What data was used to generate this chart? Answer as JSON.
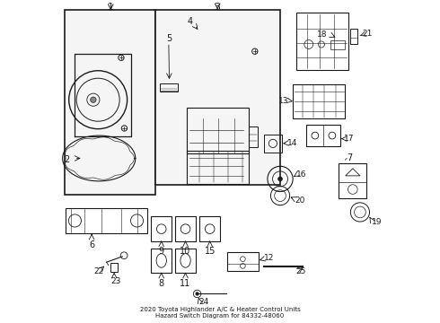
{
  "bg_color": "#ffffff",
  "line_color": "#1a1a1a",
  "title": "2020 Toyota Highlander A/C & Heater Control Units\nHazard Switch Diagram for 84332-48060"
}
